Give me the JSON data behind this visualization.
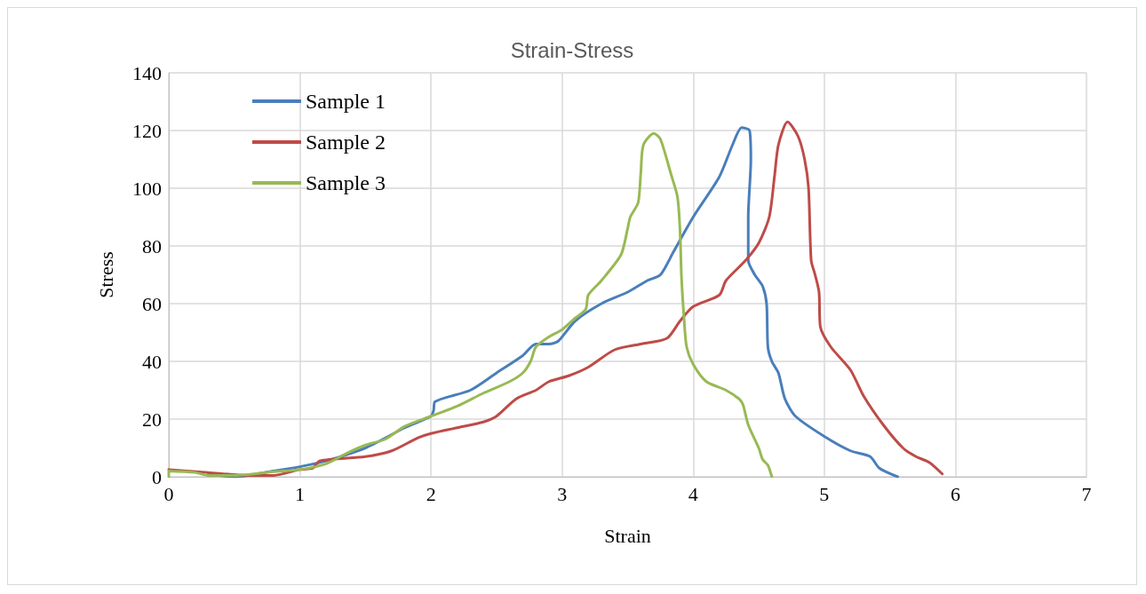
{
  "chart_data": {
    "type": "line",
    "title": "Strain-Stress",
    "xlabel": "Strain",
    "ylabel": "Stress",
    "xlim": [
      0,
      7
    ],
    "xticks": [
      0,
      1,
      2,
      3,
      4,
      5,
      6,
      7
    ],
    "ylim": [
      0,
      140
    ],
    "yticks": [
      0,
      20,
      40,
      60,
      80,
      100,
      120,
      140
    ],
    "grid": true,
    "legend": "top left",
    "marker": "none",
    "line_style": "solid",
    "series": [
      {
        "name": "Sample 1",
        "color": "#4a7ebb",
        "x": [
          0.3,
          0.5,
          0.8,
          1,
          1.2,
          1.5,
          1.8,
          2,
          2.02,
          2.03,
          2.3,
          2.5,
          2.7,
          2.8,
          2.9,
          2.97,
          3.1,
          3.3,
          3.5,
          3.65,
          3.75,
          3.85,
          4.0,
          4.2,
          4.3,
          4.37,
          4.43,
          4.44,
          4.42,
          4.42,
          4.47,
          4.53,
          4.56,
          4.57,
          4.6,
          4.65,
          4.7,
          4.78,
          5.0,
          5.2,
          5.35,
          5.42,
          5.56
        ],
        "values": [
          1,
          0,
          2,
          3.5,
          5.5,
          10,
          17,
          21,
          23,
          26,
          30,
          36,
          42,
          46,
          46,
          47,
          54,
          60,
          64,
          68,
          70,
          78,
          90,
          104,
          115,
          121,
          120,
          110,
          90,
          75,
          70,
          66,
          60,
          45,
          40,
          36,
          27,
          21,
          14,
          9,
          7,
          3,
          0
        ]
      },
      {
        "name": "Sample 2",
        "color": "#be4b48",
        "x": [
          0,
          0.3,
          0.6,
          0.8,
          1,
          1.1,
          1.15,
          1.5,
          1.7,
          1.9,
          2,
          2.2,
          2.4,
          2.5,
          2.65,
          2.8,
          2.9,
          3.05,
          3.2,
          3.4,
          3.6,
          3.8,
          3.9,
          4.0,
          4.2,
          4.25,
          4.4,
          4.5,
          4.58,
          4.62,
          4.65,
          4.72,
          4.8,
          4.85,
          4.88,
          4.9,
          4.93,
          4.96,
          4.97,
          5.05,
          5.2,
          5.3,
          5.45,
          5.6,
          5.7,
          5.8,
          5.9
        ],
        "values": [
          2.5,
          1.5,
          0.5,
          0.5,
          2.5,
          3,
          5.5,
          7,
          9,
          13.5,
          15,
          17,
          19,
          21,
          27,
          30,
          33,
          35,
          38,
          44,
          46,
          48,
          54,
          59,
          63,
          68,
          75,
          81,
          90,
          104,
          115,
          123,
          118,
          110,
          100,
          75,
          70,
          64,
          52,
          45,
          37,
          28,
          18,
          10,
          7,
          5,
          1
        ]
      },
      {
        "name": "Sample 3",
        "color": "#98b954",
        "x": [
          0,
          0,
          0.2,
          0.3,
          0.5,
          0.8,
          1,
          1.2,
          1.35,
          1.5,
          1.65,
          1.8,
          2,
          2.2,
          2.4,
          2.6,
          2.7,
          2.76,
          2.8,
          2.9,
          3.0,
          3.1,
          3.18,
          3.2,
          3.3,
          3.45,
          3.5,
          3.52,
          3.58,
          3.6,
          3.62,
          3.7,
          3.75,
          3.83,
          3.88,
          3.9,
          3.91,
          3.93,
          3.95,
          4.0,
          4.1,
          4.25,
          4.35,
          4.38,
          4.42,
          4.5,
          4.53,
          4.57,
          4.6
        ],
        "values": [
          0,
          2,
          1.5,
          0.5,
          0.5,
          1.8,
          2.5,
          4.5,
          8,
          11,
          13,
          17.5,
          21,
          24.5,
          29,
          33,
          36,
          40,
          45,
          48.5,
          51,
          55,
          58,
          63,
          68,
          77,
          86,
          90,
          95,
          105,
          115,
          119,
          117,
          105,
          97,
          85,
          70,
          55,
          45,
          39,
          33,
          30,
          27,
          25,
          18,
          10,
          6,
          4,
          0
        ]
      }
    ]
  }
}
